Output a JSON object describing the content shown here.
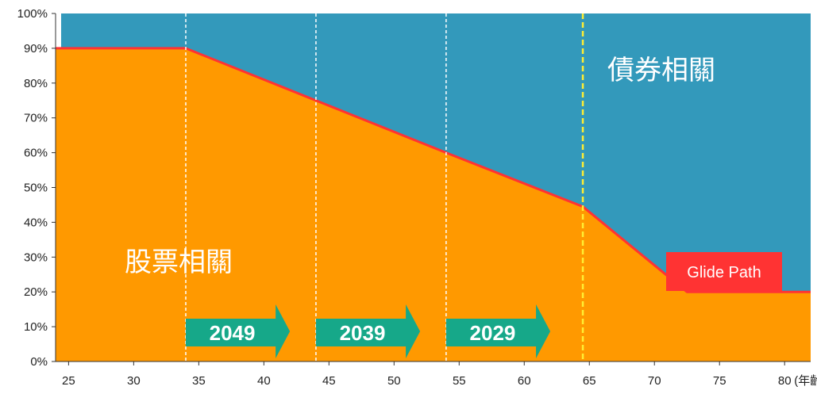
{
  "chart_data": {
    "type": "area",
    "title": "",
    "xlabel": "",
    "ylabel": "",
    "x_unit": "(年齡)",
    "xlim": [
      24,
      82
    ],
    "ylim": [
      0,
      100
    ],
    "x_ticks": [
      25,
      30,
      35,
      40,
      45,
      50,
      55,
      60,
      65,
      70,
      75,
      80
    ],
    "y_ticks": [
      "0%",
      "10%",
      "20%",
      "30%",
      "40%",
      "50%",
      "60%",
      "70%",
      "80%",
      "90%",
      "100%"
    ],
    "series": [
      {
        "name": "股票相關",
        "color": "#ff9900",
        "x": [
          24,
          34,
          44,
          54,
          64.5,
          72.5,
          82
        ],
        "y": [
          90,
          90,
          75,
          60,
          44.5,
          20,
          20
        ]
      },
      {
        "name": "債券相關",
        "color": "#3399bb"
      }
    ],
    "glide_path": {
      "label": "Glide Path",
      "color": "#ff3333"
    },
    "vertical_markers": [
      {
        "x": 34,
        "style": "dashed-white"
      },
      {
        "x": 44,
        "style": "dashed-white"
      },
      {
        "x": 54,
        "style": "dashed-white"
      },
      {
        "x": 64.5,
        "style": "dashed-yellow"
      }
    ],
    "target_date_arrows": [
      {
        "label": "2049",
        "x_start": 34,
        "x_end": 42
      },
      {
        "label": "2039",
        "x_start": 44,
        "x_end": 52
      },
      {
        "label": "2029",
        "x_start": 54,
        "x_end": 62
      }
    ],
    "arrow_color": "#16a889"
  }
}
